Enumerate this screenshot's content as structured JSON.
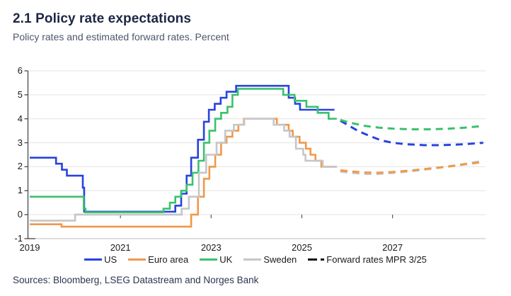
{
  "header": {
    "title": "2.1 Policy rate expectations",
    "subtitle": "Policy rates and estimated forward rates. Percent"
  },
  "source": "Sources: Bloomberg, LSEG Datastream and Norges Bank",
  "colors": {
    "us": "#2843df",
    "euro_area": "#f0984a",
    "uk": "#39c16d",
    "sweden": "#c6c6ca",
    "forward_legend": "#111111",
    "title_navy": "#1c2745",
    "grid": "#e3e3e3",
    "axis": "#555555"
  },
  "legend": [
    {
      "label": "US",
      "color": "#2843df",
      "style": "solid"
    },
    {
      "label": "Euro area",
      "color": "#f0984a",
      "style": "solid"
    },
    {
      "label": "UK",
      "color": "#39c16d",
      "style": "solid"
    },
    {
      "label": "Sweden",
      "color": "#c6c6ca",
      "style": "solid"
    },
    {
      "label": "Forward rates MPR 3/25",
      "color": "#111111",
      "style": "dashdot"
    }
  ],
  "chart_data": {
    "type": "line",
    "title": "2.1 Policy rate expectations",
    "subtitle": "Policy rates and estimated forward rates. Percent",
    "unit": "Percent",
    "xlim": [
      2019,
      2029.05
    ],
    "ylim": [
      -1,
      6
    ],
    "y_ticks": [
      6,
      5,
      4,
      3,
      2,
      1,
      0,
      -1
    ],
    "x_ticks": [
      2019,
      2021,
      2023,
      2025,
      2027
    ],
    "grid": "horizontal",
    "legend_position": "bottom",
    "series": [
      {
        "name": "US",
        "color": "#2843df",
        "line": "step",
        "points": [
          [
            2019.0,
            2.375
          ],
          [
            2019.58,
            2.125
          ],
          [
            2019.71,
            1.875
          ],
          [
            2019.82,
            1.625
          ],
          [
            2020.17,
            1.125
          ],
          [
            2020.2,
            0.125
          ],
          [
            2022.21,
            0.375
          ],
          [
            2022.34,
            0.875
          ],
          [
            2022.46,
            1.625
          ],
          [
            2022.56,
            2.375
          ],
          [
            2022.71,
            3.125
          ],
          [
            2022.84,
            3.875
          ],
          [
            2022.95,
            4.375
          ],
          [
            2023.08,
            4.625
          ],
          [
            2023.21,
            4.875
          ],
          [
            2023.34,
            5.125
          ],
          [
            2023.55,
            5.375
          ],
          [
            2024.71,
            4.875
          ],
          [
            2024.85,
            4.625
          ],
          [
            2024.96,
            4.375
          ],
          [
            2025.72,
            4.375
          ]
        ]
      },
      {
        "name": "Euro area",
        "color": "#f0984a",
        "line": "step",
        "points": [
          [
            2019.0,
            -0.4
          ],
          [
            2019.7,
            -0.5
          ],
          [
            2022.56,
            0.0
          ],
          [
            2022.71,
            0.75
          ],
          [
            2022.84,
            1.5
          ],
          [
            2022.96,
            2.0
          ],
          [
            2023.09,
            2.5
          ],
          [
            2023.22,
            3.0
          ],
          [
            2023.34,
            3.25
          ],
          [
            2023.47,
            3.5
          ],
          [
            2023.6,
            3.75
          ],
          [
            2023.72,
            4.0
          ],
          [
            2024.45,
            3.75
          ],
          [
            2024.71,
            3.5
          ],
          [
            2024.8,
            3.25
          ],
          [
            2024.95,
            3.0
          ],
          [
            2025.09,
            2.75
          ],
          [
            2025.19,
            2.5
          ],
          [
            2025.3,
            2.25
          ],
          [
            2025.43,
            2.0
          ],
          [
            2025.77,
            2.0
          ]
        ]
      },
      {
        "name": "UK",
        "color": "#39c16d",
        "line": "step",
        "points": [
          [
            2019.0,
            0.75
          ],
          [
            2020.19,
            0.25
          ],
          [
            2020.23,
            0.1
          ],
          [
            2021.95,
            0.25
          ],
          [
            2022.09,
            0.5
          ],
          [
            2022.21,
            0.75
          ],
          [
            2022.34,
            1.0
          ],
          [
            2022.46,
            1.25
          ],
          [
            2022.59,
            1.75
          ],
          [
            2022.72,
            2.25
          ],
          [
            2022.84,
            3.0
          ],
          [
            2022.96,
            3.5
          ],
          [
            2023.09,
            4.0
          ],
          [
            2023.22,
            4.25
          ],
          [
            2023.36,
            4.5
          ],
          [
            2023.47,
            5.0
          ],
          [
            2023.59,
            5.25
          ],
          [
            2024.59,
            5.0
          ],
          [
            2024.84,
            4.75
          ],
          [
            2025.1,
            4.5
          ],
          [
            2025.35,
            4.25
          ],
          [
            2025.59,
            4.0
          ],
          [
            2025.77,
            4.0
          ]
        ]
      },
      {
        "name": "Sweden",
        "color": "#c6c6ca",
        "line": "step",
        "points": [
          [
            2019.0,
            -0.25
          ],
          [
            2020.0,
            0.0
          ],
          [
            2022.35,
            0.25
          ],
          [
            2022.51,
            0.75
          ],
          [
            2022.73,
            1.75
          ],
          [
            2022.89,
            2.5
          ],
          [
            2023.12,
            3.0
          ],
          [
            2023.31,
            3.5
          ],
          [
            2023.5,
            3.75
          ],
          [
            2023.73,
            4.0
          ],
          [
            2024.38,
            3.75
          ],
          [
            2024.61,
            3.5
          ],
          [
            2024.73,
            3.25
          ],
          [
            2024.87,
            2.75
          ],
          [
            2025.03,
            2.5
          ],
          [
            2025.08,
            2.25
          ],
          [
            2025.46,
            2.0
          ],
          [
            2025.77,
            2.0
          ]
        ]
      },
      {
        "name": "Sweden forward rates MPR 3/25",
        "color": "#c6c6ca",
        "line": "dashed",
        "points": [
          [
            2025.85,
            1.8
          ],
          [
            2026.1,
            1.74
          ],
          [
            2026.4,
            1.7
          ],
          [
            2026.7,
            1.7
          ],
          [
            2027.0,
            1.74
          ],
          [
            2027.4,
            1.81
          ],
          [
            2027.8,
            1.9
          ],
          [
            2028.2,
            2.0
          ],
          [
            2028.6,
            2.12
          ],
          [
            2029.0,
            2.25
          ]
        ]
      },
      {
        "name": "Euro area forward rates MPR 3/25",
        "color": "#f0984a",
        "line": "dashed",
        "points": [
          [
            2025.85,
            1.85
          ],
          [
            2026.1,
            1.8
          ],
          [
            2026.4,
            1.76
          ],
          [
            2026.7,
            1.75
          ],
          [
            2027.0,
            1.78
          ],
          [
            2027.4,
            1.84
          ],
          [
            2027.8,
            1.92
          ],
          [
            2028.2,
            2.0
          ],
          [
            2028.6,
            2.1
          ],
          [
            2029.0,
            2.2
          ]
        ]
      },
      {
        "name": "US forward rates MPR 3/25",
        "color": "#2843df",
        "line": "dashed",
        "points": [
          [
            2025.85,
            3.92
          ],
          [
            2026.05,
            3.7
          ],
          [
            2026.25,
            3.48
          ],
          [
            2026.5,
            3.28
          ],
          [
            2026.75,
            3.1
          ],
          [
            2027.0,
            3.0
          ],
          [
            2027.3,
            2.94
          ],
          [
            2027.7,
            2.9
          ],
          [
            2028.1,
            2.9
          ],
          [
            2028.5,
            2.93
          ],
          [
            2028.8,
            2.97
          ],
          [
            2029.0,
            3.0
          ]
        ]
      },
      {
        "name": "UK forward rates MPR 3/25",
        "color": "#39c16d",
        "line": "dashed",
        "points": [
          [
            2025.85,
            3.95
          ],
          [
            2026.1,
            3.82
          ],
          [
            2026.4,
            3.7
          ],
          [
            2026.7,
            3.63
          ],
          [
            2027.0,
            3.59
          ],
          [
            2027.4,
            3.56
          ],
          [
            2027.8,
            3.56
          ],
          [
            2028.2,
            3.58
          ],
          [
            2028.6,
            3.63
          ],
          [
            2029.0,
            3.7
          ]
        ]
      }
    ]
  }
}
